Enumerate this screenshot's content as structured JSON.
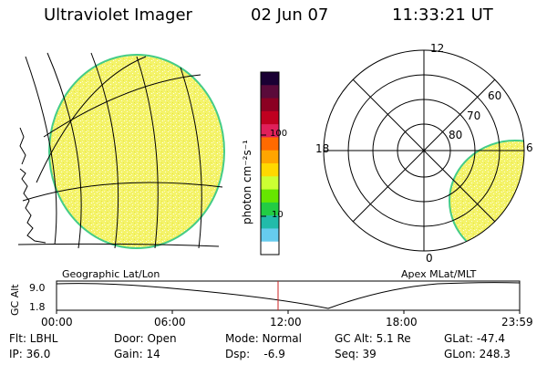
{
  "header": {
    "instrument": "Ultraviolet Imager",
    "date": "02 Jun 07",
    "time": "11:33:21 UT"
  },
  "colorbar": {
    "unit_label": "photon cm⁻²s⁻¹",
    "ticks": [
      "100",
      "10"
    ],
    "colors": [
      "#1a0033",
      "#5a0a3a",
      "#8b0022",
      "#c00020",
      "#e0205a",
      "#ff6a00",
      "#ffa500",
      "#ffd800",
      "#ccff33",
      "#66e600",
      "#22cc44",
      "#22bbaa",
      "#66ccee",
      "#ffffff"
    ]
  },
  "polar_plot": {
    "mlt_labels": [
      "12",
      "18",
      "6",
      "0"
    ],
    "lat_labels": [
      "60",
      "70",
      "80"
    ]
  },
  "map_labels": {
    "left": "Geographic Lat/Lon",
    "right": "Apex MLat/MLT"
  },
  "altitude_plot": {
    "ylabel": "GC Alt",
    "yticks": [
      "9.0",
      "1.8"
    ],
    "xticks": [
      "00:00",
      "06:00",
      "12:00",
      "18:00",
      "23:59"
    ]
  },
  "info": {
    "filter": "Flt: LBHL",
    "door": "Door: Open",
    "mode": "Mode: Normal",
    "gc_alt": "GC Alt: 5.1 Re",
    "glat": "GLat: -47.4",
    "ip": "IP: 36.0",
    "gain": "Gain: 14",
    "dsp": "Dsp:    -6.9",
    "seq": "Seq: 39",
    "glon": "GLon: 248.3"
  },
  "style": {
    "image_fill": "#f2f04a",
    "image_edge": "#44cc88",
    "current_time_line": "#cc2222"
  }
}
